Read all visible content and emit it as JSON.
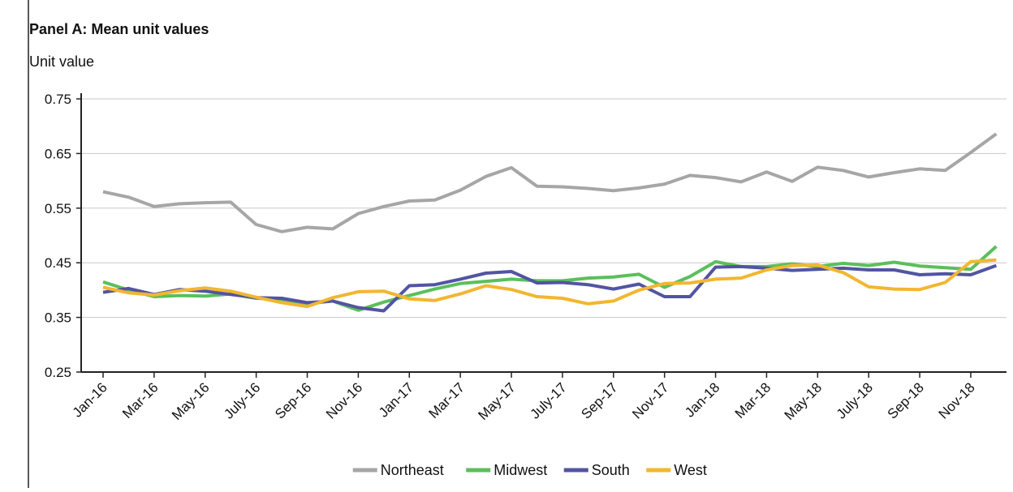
{
  "chart_data": {
    "type": "line",
    "title": "Panel A: Mean unit values",
    "y_label": "Unit value",
    "categories": [
      "Jan-16",
      null,
      "Mar-16",
      null,
      "May-16",
      null,
      "July-16",
      null,
      "Sep-16",
      null,
      "Nov-16",
      null,
      "Jan-17",
      null,
      "Mar-17",
      null,
      "May-17",
      null,
      "July-17",
      null,
      "Sep-17",
      null,
      "Nov-17",
      null,
      "Jan-18",
      null,
      "Mar-18",
      null,
      "May-18",
      null,
      "July-18",
      null,
      "Sep-18",
      null,
      "Nov-18",
      null
    ],
    "series": [
      {
        "name": "Northeast",
        "color": "#a6a6a6",
        "values": [
          0.58,
          0.57,
          0.553,
          0.558,
          0.56,
          0.561,
          0.52,
          0.507,
          0.515,
          0.512,
          0.54,
          0.553,
          0.563,
          0.565,
          0.583,
          0.608,
          0.624,
          0.59,
          0.589,
          0.586,
          0.582,
          0.587,
          0.594,
          0.61,
          0.606,
          0.598,
          0.616,
          0.599,
          0.625,
          0.619,
          0.607,
          0.615,
          0.622,
          0.619,
          0.652,
          0.686
        ]
      },
      {
        "name": "Midwest",
        "color": "#5bbf5b",
        "values": [
          0.415,
          0.4,
          0.388,
          0.39,
          0.389,
          0.393,
          0.385,
          0.383,
          0.375,
          0.38,
          0.363,
          0.378,
          0.39,
          0.402,
          0.412,
          0.416,
          0.42,
          0.417,
          0.417,
          0.422,
          0.424,
          0.429,
          0.405,
          0.425,
          0.452,
          0.443,
          0.443,
          0.448,
          0.443,
          0.449,
          0.445,
          0.451,
          0.444,
          0.441,
          0.438,
          0.48
        ]
      },
      {
        "name": "South",
        "color": "#5254a3",
        "values": [
          0.396,
          0.403,
          0.392,
          0.401,
          0.398,
          0.392,
          0.386,
          0.385,
          0.377,
          0.38,
          0.368,
          0.362,
          0.408,
          0.41,
          0.42,
          0.431,
          0.434,
          0.413,
          0.414,
          0.41,
          0.402,
          0.411,
          0.388,
          0.388,
          0.442,
          0.443,
          0.44,
          0.436,
          0.438,
          0.44,
          0.437,
          0.437,
          0.428,
          0.43,
          0.428,
          0.445
        ]
      },
      {
        "name": "West",
        "color": "#f2b630",
        "values": [
          0.405,
          0.395,
          0.391,
          0.399,
          0.404,
          0.398,
          0.387,
          0.377,
          0.37,
          0.386,
          0.397,
          0.398,
          0.384,
          0.381,
          0.393,
          0.408,
          0.401,
          0.388,
          0.385,
          0.375,
          0.38,
          0.4,
          0.412,
          0.413,
          0.42,
          0.422,
          0.437,
          0.445,
          0.446,
          0.432,
          0.406,
          0.402,
          0.401,
          0.414,
          0.452,
          0.455
        ]
      }
    ],
    "ylim": [
      0.25,
      0.75
    ],
    "yticks": [
      0.25,
      0.35,
      0.45,
      0.55,
      0.65,
      0.75
    ],
    "grid": true,
    "legend": "bottom"
  }
}
